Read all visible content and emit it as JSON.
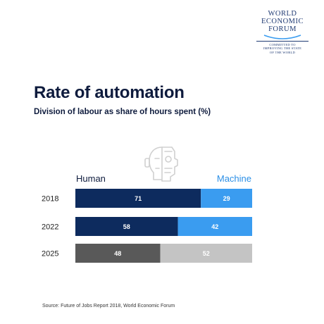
{
  "logo": {
    "lines": [
      "WORLD",
      "ECONOMIC",
      "FORUM"
    ],
    "tagline": [
      "COMMITTED TO",
      "IMPROVING THE STATE",
      "OF THE WORLD"
    ]
  },
  "title": "Rate of automation",
  "subtitle": "Division of labour as share of hours spent (%)",
  "legend": {
    "human": "Human",
    "machine": "Machine"
  },
  "source": "Source: Future of Jobs Report 2018, World Economic Forum",
  "colors": {
    "human_actual": "#0d2b5e",
    "machine_actual": "#3a9cf0",
    "human_projected": "#595959",
    "machine_projected": "#c4c4c4"
  },
  "icon": "human-robot-face-icon",
  "chart_data": {
    "type": "bar",
    "stacked": true,
    "orientation": "horizontal",
    "categories": [
      "2018",
      "2022",
      "2025"
    ],
    "series": [
      {
        "name": "Human",
        "values": [
          71,
          58,
          48
        ]
      },
      {
        "name": "Machine",
        "values": [
          29,
          42,
          52
        ]
      }
    ],
    "xlim": [
      0,
      100
    ],
    "title": "Rate of automation",
    "subtitle": "Division of labour as share of hours spent (%)",
    "grid": false,
    "legend": "top"
  }
}
